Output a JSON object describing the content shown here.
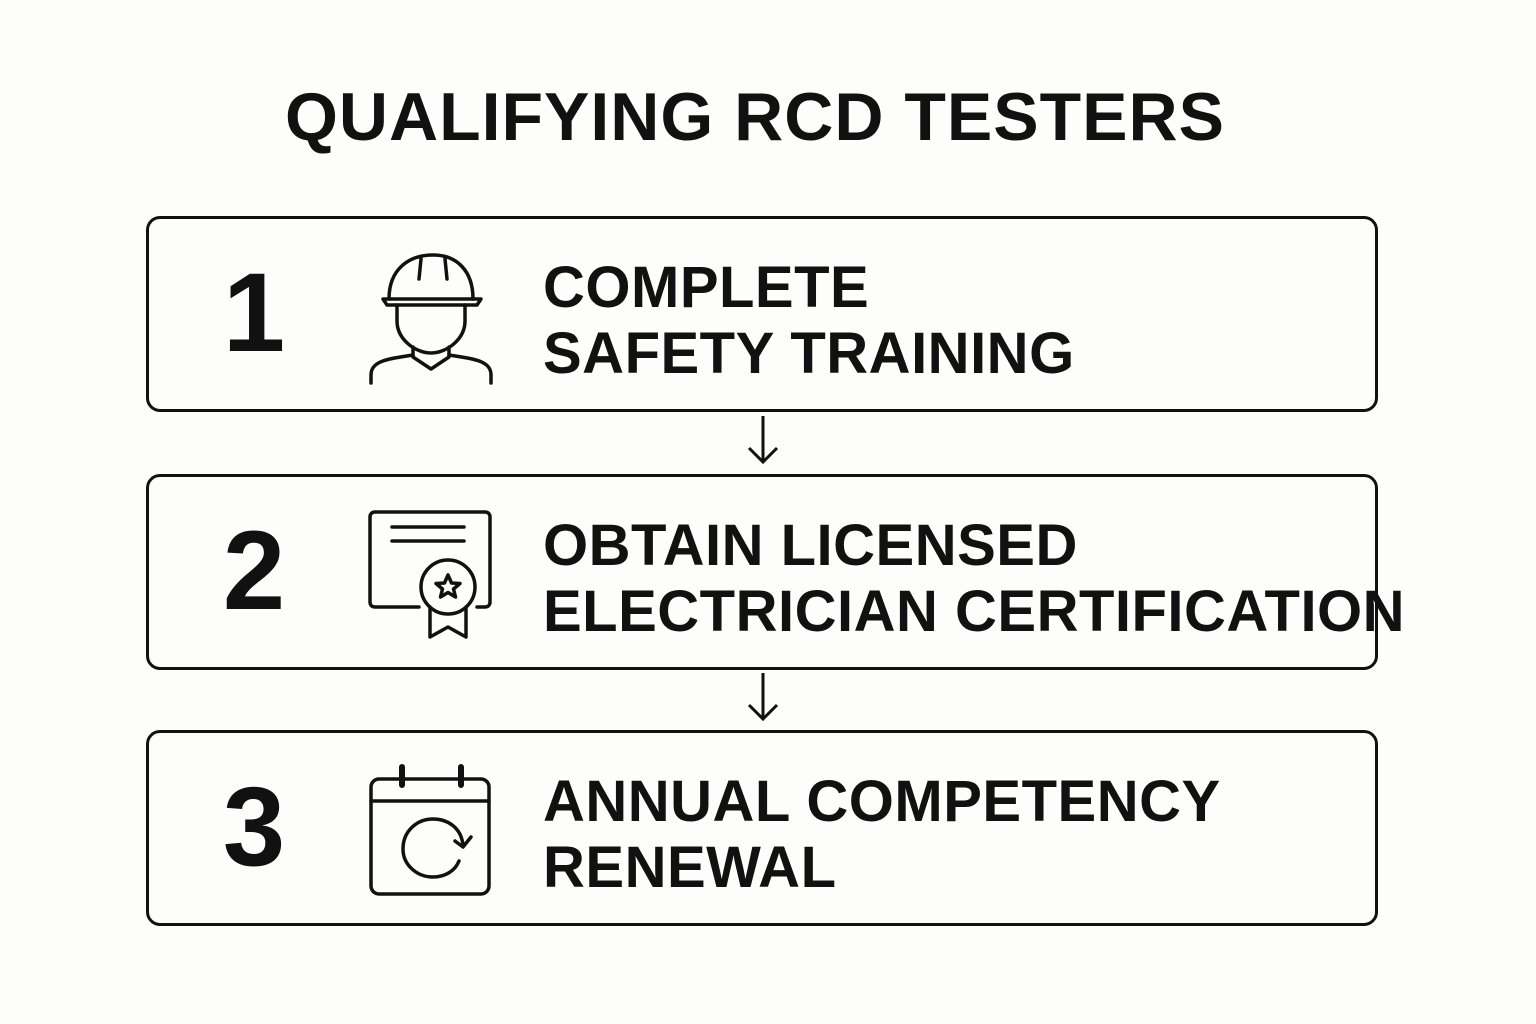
{
  "title": "QUALIFYING RCD TESTERS",
  "steps": [
    {
      "number": "1",
      "line1": "COMPLETE",
      "line2": "SAFETY TRAINING",
      "icon": "hard-hat-worker-icon"
    },
    {
      "number": "2",
      "line1": "OBTAIN LICENSED",
      "line2": "ELECTRICIAN CERTIFICATION",
      "icon": "certificate-icon"
    },
    {
      "number": "3",
      "line1": "ANNUAL COMPETENCY",
      "line2": "RENEWAL",
      "icon": "calendar-renewal-icon"
    }
  ]
}
